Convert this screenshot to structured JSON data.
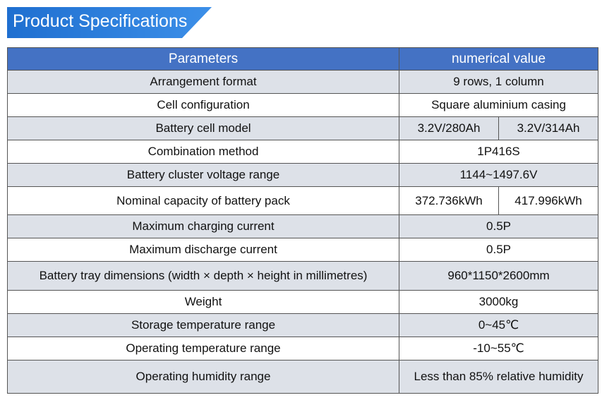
{
  "header": {
    "title": "Product Specifications"
  },
  "table": {
    "columns": [
      "Parameters",
      "numerical value"
    ],
    "rows": [
      {
        "parameter": "Arrangement format",
        "values": [
          "9 rows, 1 column"
        ]
      },
      {
        "parameter": "Cell configuration",
        "values": [
          "Square aluminium casing"
        ]
      },
      {
        "parameter": "Battery cell model",
        "values": [
          "3.2V/280Ah",
          "3.2V/314Ah"
        ]
      },
      {
        "parameter": "Combination method",
        "values": [
          "1P416S"
        ]
      },
      {
        "parameter": "Battery cluster voltage range",
        "values": [
          "1144~1497.6V"
        ]
      },
      {
        "parameter": "Nominal capacity of battery pack",
        "values": [
          "372.736kWh",
          "417.996kWh"
        ]
      },
      {
        "parameter": "Maximum charging current",
        "values": [
          "0.5P"
        ]
      },
      {
        "parameter": "Maximum discharge current",
        "values": [
          "0.5P"
        ]
      },
      {
        "parameter": "Battery tray dimensions (width × depth × height in millimetres)",
        "values": [
          "960*1150*2600mm"
        ]
      },
      {
        "parameter": "Weight",
        "values": [
          "3000kg"
        ]
      },
      {
        "parameter": "Storage temperature range",
        "values": [
          "0~45℃"
        ]
      },
      {
        "parameter": "Operating temperature range",
        "values": [
          "-10~55℃"
        ]
      },
      {
        "parameter": "Operating humidity range",
        "values": [
          "Less than 85% relative humidity"
        ]
      }
    ]
  }
}
